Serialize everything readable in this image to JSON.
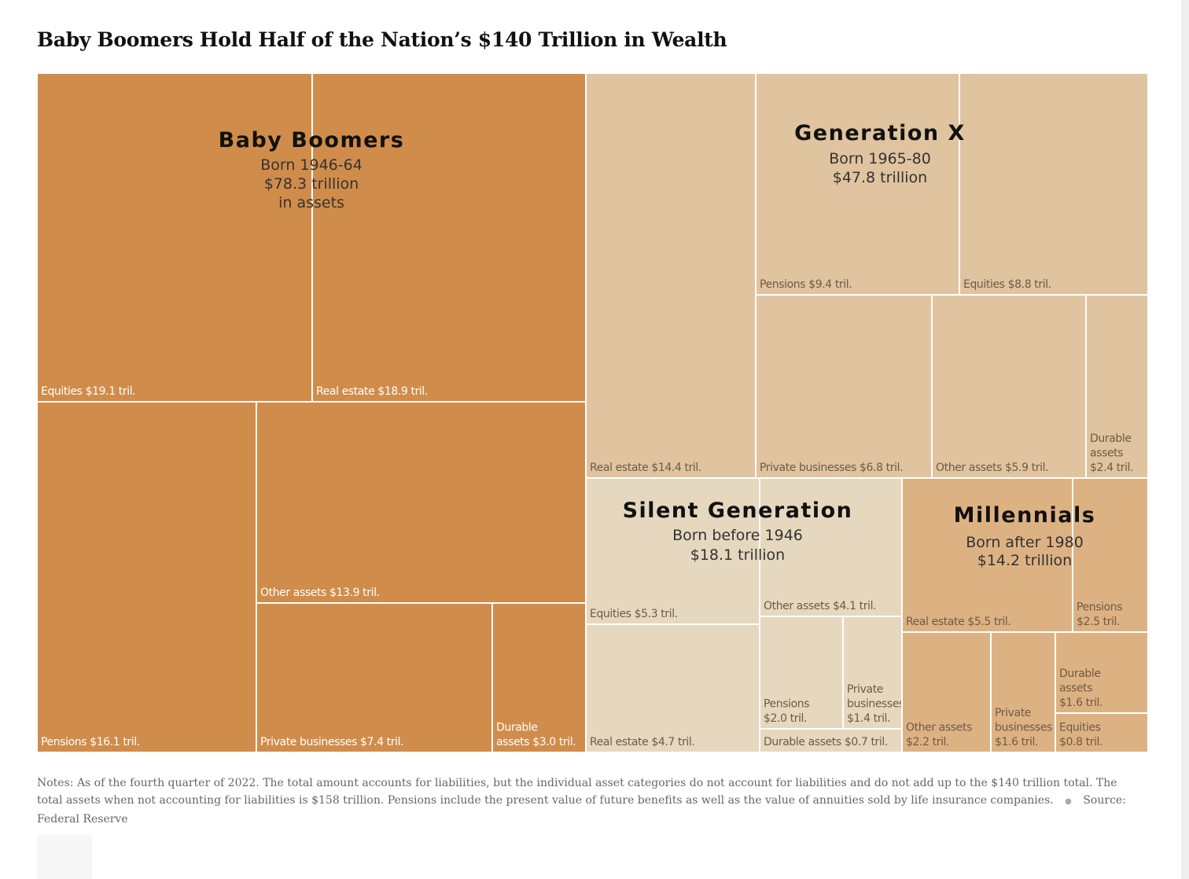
{
  "title": "Baby Boomers Hold Half of the Nation’s $140 Trillion in Wealth",
  "notes": {
    "text": "Notes: As of the fourth quarter of 2022. The total amount accounts for liabilities, but the individual asset categories do not account for liabilities and do not add up to the $140 trillion total. The total assets when not accounting for liabilities is $158 trillion. Pensions include the present value of future benefits as well as the value of annuities sold by life insurance companies.",
    "source": "Source: Federal Reserve"
  },
  "colors": {
    "baby_boomers": "#d08c4a",
    "generation_x": "#e0c39f",
    "silent_generation": "#e6d8bf",
    "millennials": "#ddb283",
    "divider": "#ffffff"
  },
  "chart_data": {
    "type": "treemap",
    "unit": "trillion dollars",
    "groups": [
      {
        "name": "Baby Boomers",
        "born": "Born 1946-64",
        "total_label": "$78.3 trillion",
        "total_label_2": "in assets",
        "total": 78.3,
        "items": [
          {
            "category": "Equities",
            "value": 19.1,
            "label": "Equities $19.1 tril."
          },
          {
            "category": "Real estate",
            "value": 18.9,
            "label": "Real estate $18.9 tril."
          },
          {
            "category": "Pensions",
            "value": 16.1,
            "label": "Pensions $16.1 tril."
          },
          {
            "category": "Other assets",
            "value": 13.9,
            "label": "Other assets $13.9 tril."
          },
          {
            "category": "Private businesses",
            "value": 7.4,
            "label": "Private businesses $7.4 tril."
          },
          {
            "category": "Durable assets",
            "value": 3.0,
            "label": [
              "Durable",
              "assets $3.0 tril."
            ]
          }
        ]
      },
      {
        "name": "Generation X",
        "born": "Born 1965-80",
        "total_label": "$47.8 trillion",
        "total": 47.8,
        "items": [
          {
            "category": "Real estate",
            "value": 14.4,
            "label": "Real estate $14.4 tril."
          },
          {
            "category": "Pensions",
            "value": 9.4,
            "label": "Pensions $9.4 tril."
          },
          {
            "category": "Equities",
            "value": 8.8,
            "label": "Equities $8.8 tril."
          },
          {
            "category": "Private businesses",
            "value": 6.8,
            "label": "Private businesses $6.8 tril."
          },
          {
            "category": "Other assets",
            "value": 5.9,
            "label": "Other assets $5.9 tril."
          },
          {
            "category": "Durable assets",
            "value": 2.4,
            "label": [
              "Durable",
              "assets",
              "$2.4 tril."
            ]
          }
        ]
      },
      {
        "name": "Silent Generation",
        "born": "Born before 1946",
        "total_label": "$18.1 trillion",
        "total": 18.1,
        "items": [
          {
            "category": "Equities",
            "value": 5.3,
            "label": "Equities $5.3 tril."
          },
          {
            "category": "Real estate",
            "value": 4.7,
            "label": "Real estate $4.7 tril."
          },
          {
            "category": "Other assets",
            "value": 4.1,
            "label": "Other assets $4.1 tril."
          },
          {
            "category": "Pensions",
            "value": 2.0,
            "label": [
              "Pensions",
              "$2.0 tril."
            ]
          },
          {
            "category": "Private businesses",
            "value": 1.4,
            "label": [
              "Private",
              "businesses",
              "$1.4 tril."
            ]
          },
          {
            "category": "Durable assets",
            "value": 0.7,
            "label": "Durable assets $0.7 tril."
          }
        ]
      },
      {
        "name": "Millennials",
        "born": "Born after 1980",
        "total_label": "$14.2 trillion",
        "total": 14.2,
        "items": [
          {
            "category": "Real estate",
            "value": 5.5,
            "label": "Real estate $5.5 tril."
          },
          {
            "category": "Pensions",
            "value": 2.5,
            "label": [
              "Pensions",
              "$2.5 tril."
            ]
          },
          {
            "category": "Other assets",
            "value": 2.2,
            "label": [
              "Other assets",
              "$2.2 tril."
            ]
          },
          {
            "category": "Private businesses",
            "value": 1.6,
            "label": [
              "Private",
              "businesses",
              "$1.6 tril."
            ]
          },
          {
            "category": "Durable assets",
            "value": 1.6,
            "label": [
              "Durable",
              "assets",
              "$1.6 tril."
            ]
          },
          {
            "category": "Equities",
            "value": 0.8,
            "label": [
              "Equities",
              "$0.8 tril."
            ]
          }
        ]
      }
    ]
  }
}
